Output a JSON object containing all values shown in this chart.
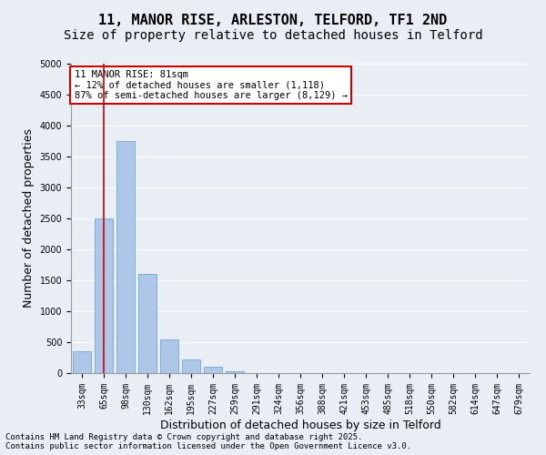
{
  "title1": "11, MANOR RISE, ARLESTON, TELFORD, TF1 2ND",
  "title2": "Size of property relative to detached houses in Telford",
  "xlabel": "Distribution of detached houses by size in Telford",
  "ylabel": "Number of detached properties",
  "categories": [
    "33sqm",
    "65sqm",
    "98sqm",
    "130sqm",
    "162sqm",
    "195sqm",
    "227sqm",
    "259sqm",
    "291sqm",
    "324sqm",
    "356sqm",
    "388sqm",
    "421sqm",
    "453sqm",
    "485sqm",
    "518sqm",
    "550sqm",
    "582sqm",
    "614sqm",
    "647sqm",
    "679sqm"
  ],
  "values": [
    350,
    2500,
    3750,
    1600,
    550,
    220,
    100,
    30,
    5,
    0,
    0,
    0,
    0,
    0,
    0,
    0,
    0,
    0,
    0,
    0,
    0
  ],
  "bar_color": "#aec6e8",
  "bar_edgecolor": "#5a9fd4",
  "bar_alpha": 1.0,
  "vline_x": 1,
  "vline_color": "#cc0000",
  "ylim": [
    0,
    5000
  ],
  "yticks": [
    0,
    500,
    1000,
    1500,
    2000,
    2500,
    3000,
    3500,
    4000,
    4500,
    5000
  ],
  "background_color": "#e8eef4",
  "plot_background": "#e8eef4",
  "annotation_text": "11 MANOR RISE: 81sqm\n← 12% of detached houses are smaller (1,118)\n87% of semi-detached houses are larger (8,129) →",
  "annotation_box_color": "#cc0000",
  "footer_text": "Contains HM Land Registry data © Crown copyright and database right 2025.\nContains public sector information licensed under the Open Government Licence v3.0.",
  "grid_color": "#ffffff",
  "title_fontsize": 11,
  "subtitle_fontsize": 10,
  "tick_fontsize": 7,
  "ylabel_fontsize": 9,
  "xlabel_fontsize": 9
}
